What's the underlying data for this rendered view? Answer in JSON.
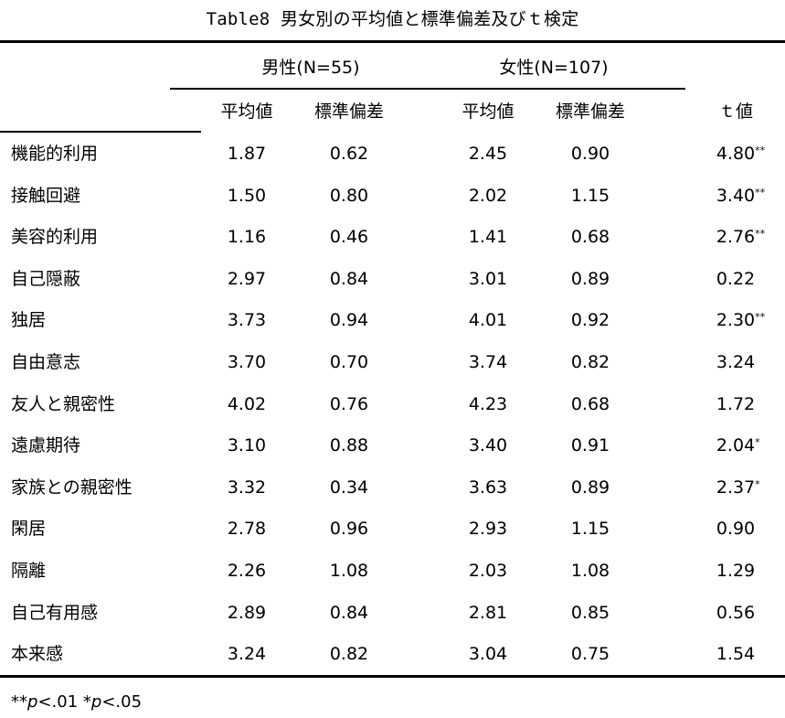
{
  "caption": "Table8 男女別の平均値と標準偏差及びｔ検定",
  "groups": {
    "male": "男性(N=55)",
    "female": "女性(N=107)"
  },
  "column_headers": {
    "male_mean": "平均値",
    "male_sd": "標準偏差",
    "female_mean": "平均値",
    "female_sd": "標準偏差",
    "t": "ｔ値"
  },
  "rows": [
    {
      "label": "機能的利用",
      "m_mean": "1.87",
      "m_sd": "0.62",
      "f_mean": "2.45",
      "f_sd": "0.90",
      "t": "4.80",
      "sig": "**"
    },
    {
      "label": "接触回避",
      "m_mean": "1.50",
      "m_sd": "0.80",
      "f_mean": "2.02",
      "f_sd": "1.15",
      "t": "3.40",
      "sig": "**"
    },
    {
      "label": "美容的利用",
      "m_mean": "1.16",
      "m_sd": "0.46",
      "f_mean": "1.41",
      "f_sd": "0.68",
      "t": "2.76",
      "sig": "**"
    },
    {
      "label": "自己隠蔽",
      "m_mean": "2.97",
      "m_sd": "0.84",
      "f_mean": "3.01",
      "f_sd": "0.89",
      "t": "0.22",
      "sig": ""
    },
    {
      "label": "独居",
      "m_mean": "3.73",
      "m_sd": "0.94",
      "f_mean": "4.01",
      "f_sd": "0.92",
      "t": "2.30",
      "sig": "**"
    },
    {
      "label": "自由意志",
      "m_mean": "3.70",
      "m_sd": "0.70",
      "f_mean": "3.74",
      "f_sd": "0.82",
      "t": "3.24",
      "sig": ""
    },
    {
      "label": "友人と親密性",
      "m_mean": "4.02",
      "m_sd": "0.76",
      "f_mean": "4.23",
      "f_sd": "0.68",
      "t": "1.72",
      "sig": ""
    },
    {
      "label": "遠慮期待",
      "m_mean": "3.10",
      "m_sd": "0.88",
      "f_mean": "3.40",
      "f_sd": "0.91",
      "t": "2.04",
      "sig": "*"
    },
    {
      "label": "家族との親密性",
      "m_mean": "3.32",
      "m_sd": "0.34",
      "f_mean": "3.63",
      "f_sd": "0.89",
      "t": "2.37",
      "sig": "*"
    },
    {
      "label": "閑居",
      "m_mean": "2.78",
      "m_sd": "0.96",
      "f_mean": "2.93",
      "f_sd": "1.15",
      "t": "0.90",
      "sig": ""
    },
    {
      "label": "隔離",
      "m_mean": "2.26",
      "m_sd": "1.08",
      "f_mean": "2.03",
      "f_sd": "1.08",
      "t": "1.29",
      "sig": ""
    },
    {
      "label": "自己有用感",
      "m_mean": "2.89",
      "m_sd": "0.84",
      "f_mean": "2.81",
      "f_sd": "0.85",
      "t": "0.56",
      "sig": ""
    },
    {
      "label": "本来感",
      "m_mean": "3.24",
      "m_sd": "0.82",
      "f_mean": "3.04",
      "f_sd": "0.75",
      "t": "1.54",
      "sig": ""
    }
  ],
  "note": {
    "part1": "**",
    "p1": "p",
    "part2": "<.01 *",
    "p2": "p",
    "part3": "<.05"
  }
}
